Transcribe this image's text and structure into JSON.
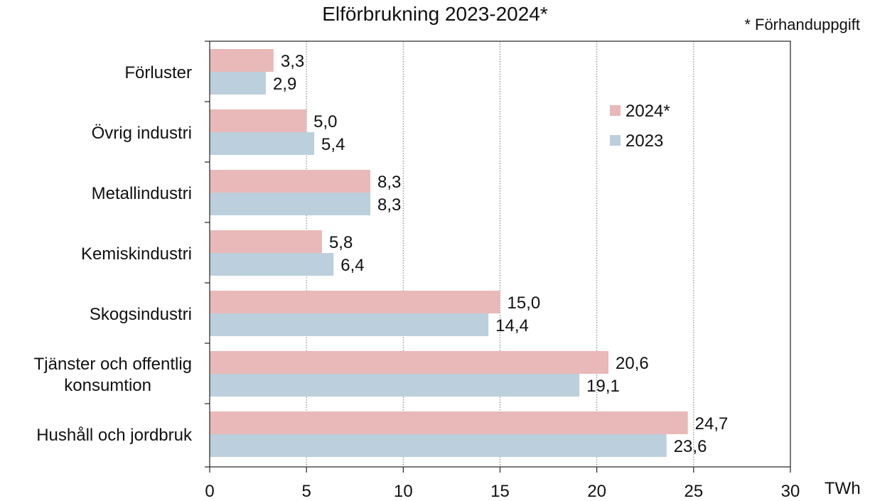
{
  "chart_data": {
    "type": "bar",
    "orientation": "horizontal",
    "title": "Elförbrukning 2023-2024*",
    "note": "* Förhanduppgift",
    "unit": "TWh",
    "categories": [
      "Förluster",
      "Övrig industri",
      "Metallindustri",
      "Kemiskindustri",
      "Skogsindustri",
      "Tjänster och offentlig konsumtion",
      "Hushåll och jordbruk"
    ],
    "category_lines": [
      [
        "Förluster"
      ],
      [
        "Övrig industri"
      ],
      [
        "Metallindustri"
      ],
      [
        "Kemiskindustri"
      ],
      [
        "Skogsindustri"
      ],
      [
        "Tjänster och offentlig",
        "konsumtion"
      ],
      [
        "Hushåll och jordbruk"
      ]
    ],
    "series": [
      {
        "name": "2024*",
        "color": "#e8b9b8",
        "values": [
          3.3,
          5.0,
          8.3,
          5.8,
          15.0,
          20.6,
          24.7
        ],
        "labels": [
          "3,3",
          "5,0",
          "8,3",
          "5,8",
          "15,0",
          "20,6",
          "24,7"
        ]
      },
      {
        "name": "2023",
        "color": "#bccfdc",
        "values": [
          2.9,
          5.4,
          8.3,
          6.4,
          14.4,
          19.1,
          23.6
        ],
        "labels": [
          "2,9",
          "5,4",
          "8,3",
          "6,4",
          "14,4",
          "19,1",
          "23,6"
        ]
      }
    ],
    "xlim": [
      0,
      30
    ],
    "xticks": [
      0,
      5,
      10,
      15,
      20,
      25,
      30
    ],
    "xtick_labels": [
      "0",
      "5",
      "10",
      "15",
      "20",
      "25",
      "30"
    ],
    "grid": "vertical dotted",
    "legend_position": "top-right inside plot"
  }
}
